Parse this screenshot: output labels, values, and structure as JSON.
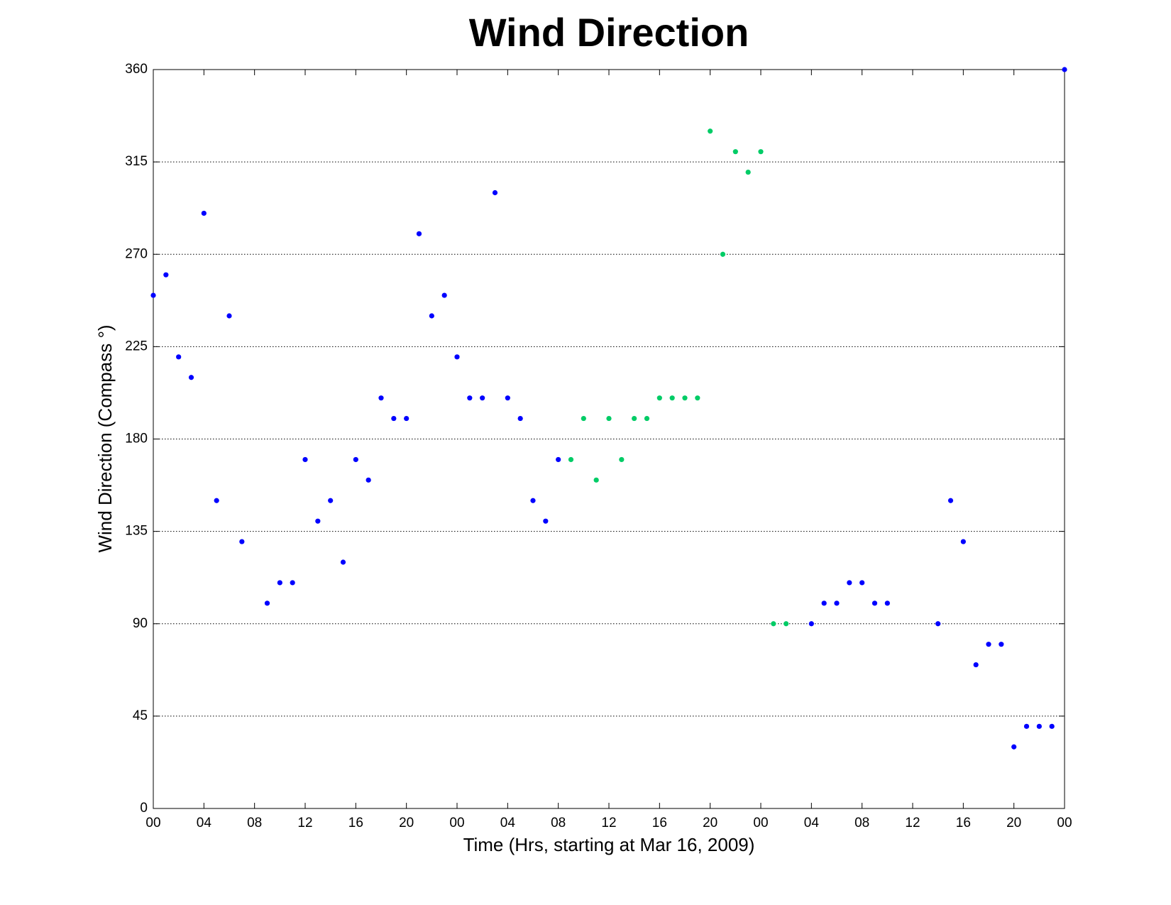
{
  "chart_data": {
    "type": "scatter",
    "title": "Wind Direction",
    "x_label": "Time (Hrs, starting at Mar 16, 2009)",
    "y_label": "Wind Direction (Compass  °)",
    "xlim": [
      0,
      72
    ],
    "ylim": [
      0,
      360
    ],
    "xticks": [
      {
        "value": 0,
        "label": "00"
      },
      {
        "value": 4,
        "label": "04"
      },
      {
        "value": 8,
        "label": "08"
      },
      12,
      16,
      20,
      {
        "value": 24,
        "label": "00"
      },
      {
        "value": 28,
        "label": "04"
      },
      {
        "value": 32,
        "label": "08"
      },
      {
        "value": 36,
        "label": "12"
      },
      {
        "value": 40,
        "label": "16"
      },
      {
        "value": 44,
        "label": "20"
      },
      {
        "value": 48,
        "label": "00"
      },
      {
        "value": 52,
        "label": "04"
      },
      {
        "value": 56,
        "label": "08"
      },
      {
        "value": 60,
        "label": "12"
      },
      {
        "value": 64,
        "label": "16"
      },
      {
        "value": 68,
        "label": "20"
      },
      {
        "value": 72,
        "label": "00"
      }
    ],
    "yticks": [
      0,
      45,
      90,
      135,
      180,
      225,
      270,
      315,
      360
    ],
    "grid": "y",
    "series": [
      {
        "color": "#0000ff",
        "x": [
          0,
          1,
          2,
          3,
          4,
          5,
          6,
          7,
          9,
          10,
          11,
          12,
          13,
          14,
          15,
          16,
          17,
          18,
          19,
          20,
          21,
          22,
          23,
          24,
          25,
          26,
          27,
          28,
          29,
          30,
          31,
          32,
          52,
          53,
          54,
          55,
          56,
          57,
          58,
          62,
          63,
          64,
          65,
          66,
          67,
          68,
          69,
          70,
          71,
          72
        ],
        "values": [
          250,
          260,
          220,
          210,
          290,
          150,
          240,
          130,
          100,
          110,
          110,
          170,
          140,
          150,
          120,
          170,
          160,
          200,
          190,
          190,
          280,
          240,
          250,
          220,
          200,
          200,
          300,
          200,
          190,
          150,
          140,
          170,
          90,
          100,
          100,
          110,
          110,
          100,
          100,
          90,
          150,
          130,
          70,
          80,
          80,
          30,
          40,
          40,
          40,
          360
        ]
      },
      {
        "color": "#00cc66",
        "x": [
          33,
          34,
          35,
          36,
          37,
          38,
          39,
          40,
          41,
          42,
          43,
          44,
          45,
          46,
          47,
          48,
          49,
          50
        ],
        "values": [
          170,
          190,
          160,
          190,
          170,
          190,
          190,
          200,
          200,
          200,
          200,
          330,
          270,
          320,
          310,
          320,
          90,
          90
        ]
      }
    ]
  }
}
